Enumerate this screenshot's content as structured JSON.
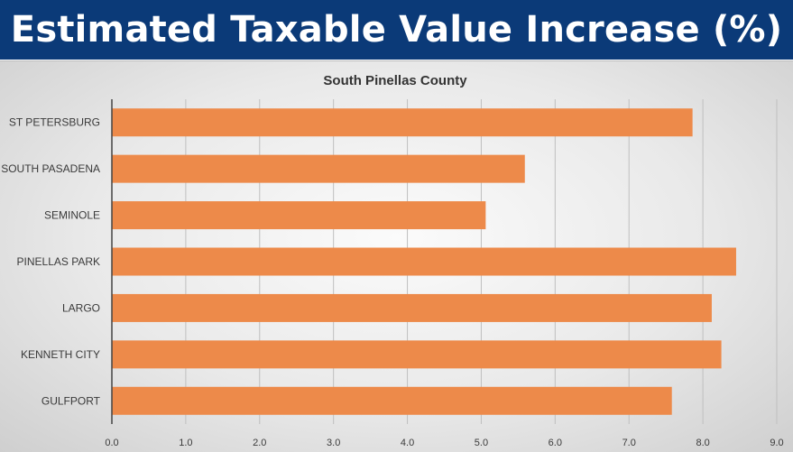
{
  "header": {
    "title": "Estimated Taxable Value Increase (%)"
  },
  "colors": {
    "banner": "#0b3a78",
    "bar": "#ed8a4a",
    "grid": "#bfbfbf"
  },
  "chart_data": {
    "type": "bar",
    "orientation": "horizontal",
    "title": "South Pinellas County",
    "xlabel": "",
    "ylabel": "",
    "categories": [
      "ST PETERSBURG",
      "SOUTH PASADENA",
      "SEMINOLE",
      "PINELLAS PARK",
      "LARGO",
      "KENNETH CITY",
      "GULFPORT"
    ],
    "values": [
      7.86,
      5.59,
      5.06,
      8.45,
      8.12,
      8.25,
      7.58
    ],
    "xlim": [
      0,
      9
    ],
    "xticks": [
      "0.0",
      "1.0",
      "2.0",
      "3.0",
      "4.0",
      "5.0",
      "6.0",
      "7.0",
      "8.0",
      "9.0"
    ],
    "grid": true,
    "legend": "none"
  }
}
